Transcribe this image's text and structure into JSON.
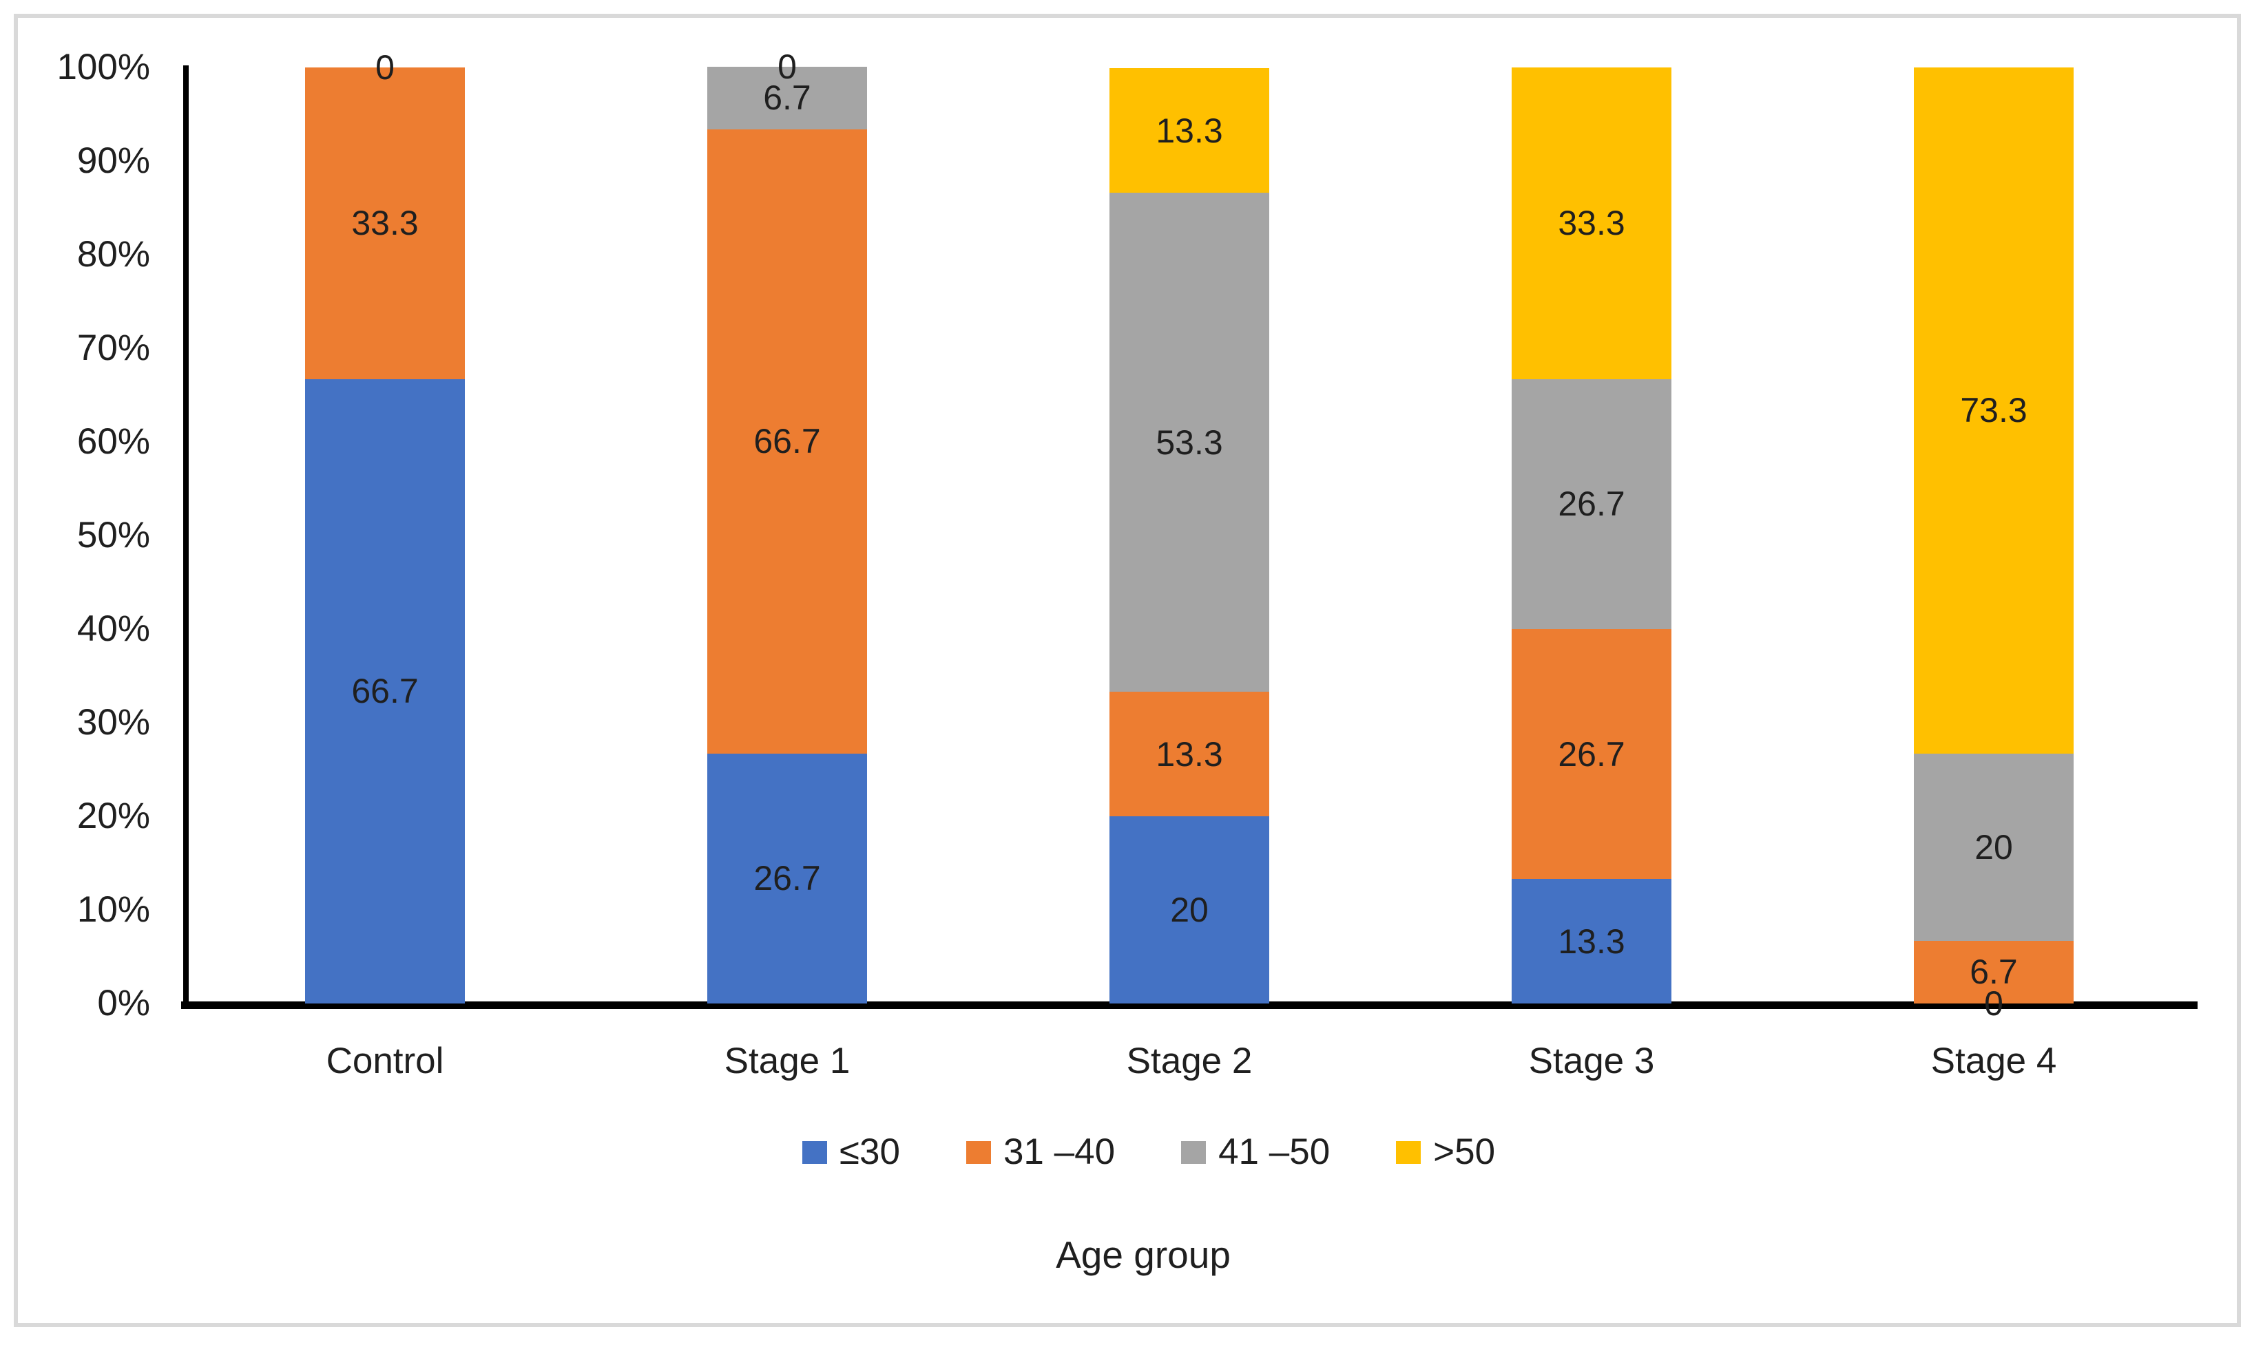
{
  "frame": {
    "border_color": "#d9d9d9",
    "background": "#ffffff"
  },
  "chart_data": {
    "type": "bar",
    "subtype": "stacked-100-percent-column",
    "title": "",
    "xlabel": "Age group",
    "ylabel": "",
    "categories": [
      "Control",
      "Stage 1",
      "Stage 2",
      "Stage 3",
      "Stage 4"
    ],
    "series": [
      {
        "name": "≤30",
        "color": "#4472C4",
        "values": [
          66.7,
          26.7,
          20,
          13.3,
          0
        ]
      },
      {
        "name": "31 –40",
        "color": "#ED7D31",
        "values": [
          33.3,
          66.7,
          13.3,
          26.7,
          6.7
        ]
      },
      {
        "name": "41 –50",
        "color": "#A5A5A5",
        "values": [
          0,
          6.7,
          53.3,
          26.7,
          20
        ]
      },
      {
        "name": ">50",
        "color": "#FFC000",
        "values": [
          0,
          0,
          13.3,
          33.3,
          73.3
        ]
      }
    ],
    "y_ticks": [
      "100%",
      "90%",
      "80%",
      "70%",
      "60%",
      "50%",
      "40%",
      "30%",
      "20%",
      "10%",
      "0%"
    ],
    "ylim": [
      0,
      100
    ],
    "grid": false,
    "legend_position": "bottom",
    "data_labels": true,
    "axis_color": "#000000",
    "label_color": "#1f1f1f"
  }
}
